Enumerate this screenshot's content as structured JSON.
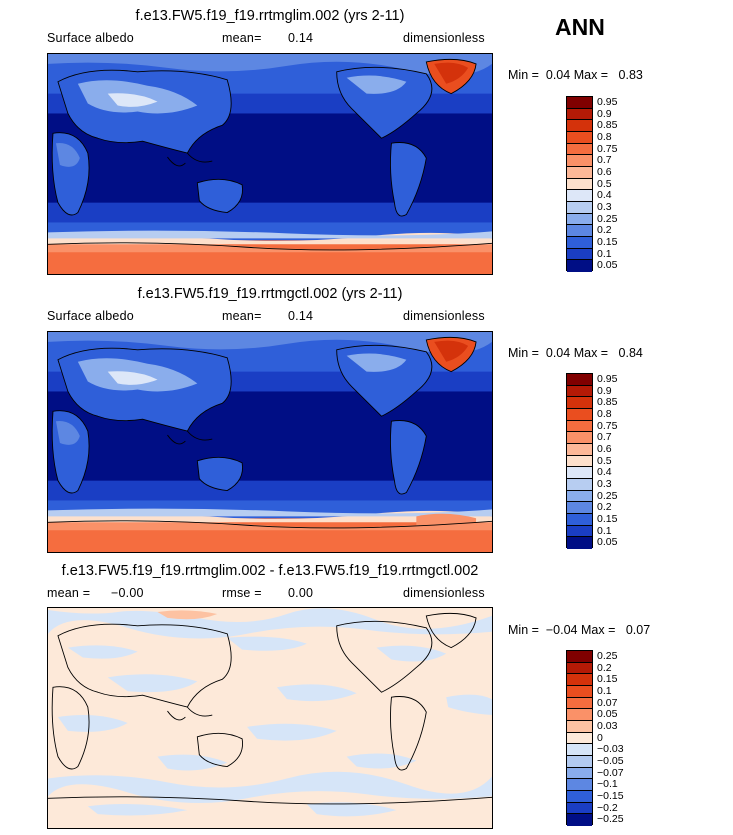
{
  "season": "ANN",
  "panels": [
    {
      "title": "f.e13.FW5.f19_f19.rrtmglim.002 (yrs 2-11)",
      "variable": "Surface albedo",
      "mean_label": "mean=",
      "mean_value": "0.14",
      "units": "dimensionless",
      "min_label": "Min =",
      "min_value": "0.04",
      "max_label": "Max =",
      "max_value": "0.83",
      "colorbar_levels": [
        "0.95",
        "0.9",
        "0.85",
        "0.8",
        "0.75",
        "0.7",
        "0.6",
        "0.5",
        "0.4",
        "0.3",
        "0.25",
        "0.2",
        "0.15",
        "0.1",
        "0.05"
      ]
    },
    {
      "title": "f.e13.FW5.f19_f19.rrtmgctl.002 (yrs 2-11)",
      "variable": "Surface albedo",
      "mean_label": "mean=",
      "mean_value": "0.14",
      "units": "dimensionless",
      "min_label": "Min =",
      "min_value": "0.04",
      "max_label": "Max =",
      "max_value": "0.84",
      "colorbar_levels": [
        "0.95",
        "0.9",
        "0.85",
        "0.8",
        "0.75",
        "0.7",
        "0.6",
        "0.5",
        "0.4",
        "0.3",
        "0.25",
        "0.2",
        "0.15",
        "0.1",
        "0.05"
      ]
    },
    {
      "title": "f.e13.FW5.f19_f19.rrtmglim.002 - f.e13.FW5.f19_f19.rrtmgctl.002",
      "mean_label": "mean =",
      "mean_value": "−0.00",
      "rmse_label": "rmse =",
      "rmse_value": "0.00",
      "units": "dimensionless",
      "min_label": "Min =",
      "min_value": "−0.04",
      "max_label": "Max =",
      "max_value": "0.07",
      "colorbar_levels": [
        "0.25",
        "0.2",
        "0.15",
        "0.1",
        "0.07",
        "0.05",
        "0.03",
        "0",
        "−0.03",
        "−0.05",
        "−0.07",
        "−0.1",
        "−0.15",
        "−0.2",
        "−0.25"
      ]
    }
  ],
  "colors": {
    "abs_scale": [
      "#800000",
      "#b41a06",
      "#d4320b",
      "#ea4e1f",
      "#f56d3f",
      "#fa9168",
      "#fdb898",
      "#fde0cc",
      "#dde7f8",
      "#b7cdf1",
      "#8aadec",
      "#5d87e2",
      "#2f5fd9",
      "#1a3ec4",
      "#000e85"
    ],
    "diff_scale": [
      "#800000",
      "#b41a06",
      "#d4320b",
      "#ea4e1f",
      "#f56d3f",
      "#fa9168",
      "#fdc2a2",
      "#fde9d9",
      "#d6e5f8",
      "#b3cbf1",
      "#8aadec",
      "#5d87e2",
      "#2f5fd9",
      "#1a3ec4",
      "#000e85"
    ]
  }
}
